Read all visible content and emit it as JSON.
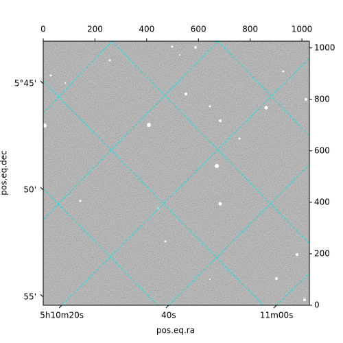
{
  "chart_data": {
    "type": "image",
    "xlabel": "pos.eq.ra",
    "ylabel": "pos.eq.dec",
    "xlim": [
      0,
      1029
    ],
    "ylim": [
      0,
      1026
    ],
    "xticks": [
      0,
      200,
      400,
      600,
      800,
      1000
    ],
    "yticks": [
      0,
      200,
      400,
      600,
      800,
      1000
    ],
    "ra_ticks": [
      {
        "value": 72,
        "label": "5h10m20s"
      },
      {
        "value": 485,
        "label": "40s"
      },
      {
        "value": 902,
        "label": "11m00s"
      }
    ],
    "dec_ticks": [
      {
        "value": 861,
        "label": "5°45'"
      },
      {
        "value": 448,
        "label": "50'"
      },
      {
        "value": 32,
        "label": "55'"
      }
    ],
    "grid_color": "#00e5e5"
  }
}
